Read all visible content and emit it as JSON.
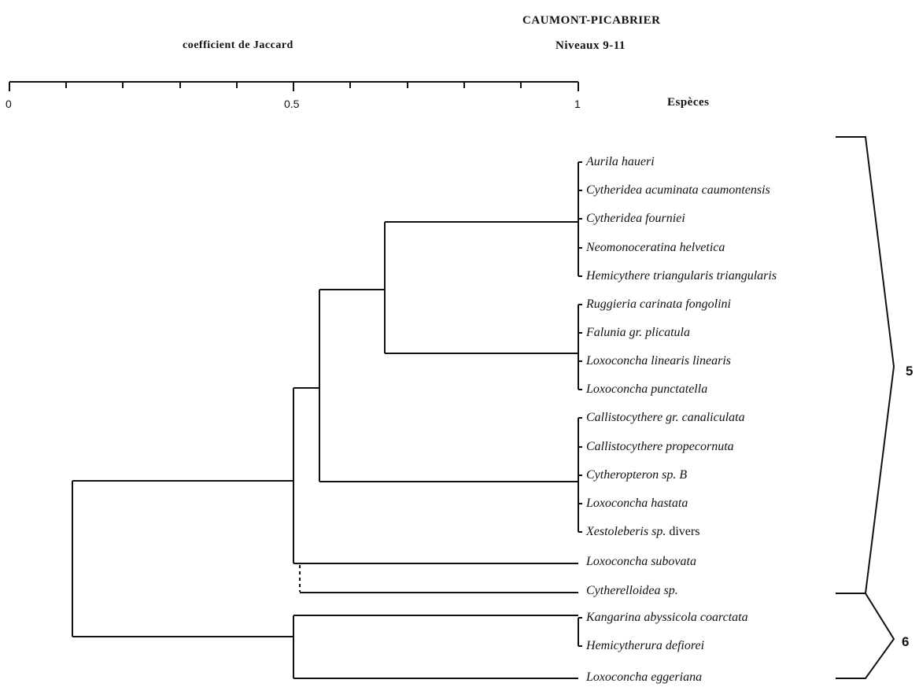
{
  "header": {
    "site_title": "CAUMONT-PICABRIER",
    "levels": "Niveaux 9-11",
    "axis_title": "coefficient de Jaccard",
    "species_heading": "Espèces"
  },
  "axis": {
    "tick_labels": [
      "0",
      "0.5",
      "1"
    ]
  },
  "species": [
    {
      "name": "Aurila haueri",
      "suffix": ""
    },
    {
      "name": "Cytheridea acuminata caumontensis",
      "suffix": ""
    },
    {
      "name": "Cytheridea fourniei",
      "suffix": ""
    },
    {
      "name": "Neomonoceratina helvetica",
      "suffix": ""
    },
    {
      "name": "Hemicythere triangularis triangularis",
      "suffix": ""
    },
    {
      "name": "Ruggieria carinata fongolini",
      "suffix": ""
    },
    {
      "name": "Falunia gr. plicatula",
      "suffix": ""
    },
    {
      "name": "Loxoconcha linearis linearis",
      "suffix": ""
    },
    {
      "name": "Loxoconcha punctatella",
      "suffix": ""
    },
    {
      "name": "Callistocythere gr. canaliculata",
      "suffix": ""
    },
    {
      "name": "Callistocythere propecornuta",
      "suffix": ""
    },
    {
      "name": "Cytheropteron sp. B",
      "suffix": ""
    },
    {
      "name": "Loxoconcha hastata",
      "suffix": ""
    },
    {
      "name": "Xestoleberis sp.",
      "suffix": "divers"
    },
    {
      "name": "Loxoconcha subovata",
      "suffix": ""
    },
    {
      "name": "Cytherelloidea sp.",
      "suffix": ""
    },
    {
      "name": "Kangarina abyssicola coarctata",
      "suffix": ""
    },
    {
      "name": "Hemicytherura defiorei",
      "suffix": ""
    },
    {
      "name": "Loxoconcha eggeriana",
      "suffix": ""
    }
  ],
  "groups": [
    {
      "label": "5"
    },
    {
      "label": "6"
    }
  ],
  "colors": {
    "ink": "#111111",
    "background": "#ffffff"
  }
}
